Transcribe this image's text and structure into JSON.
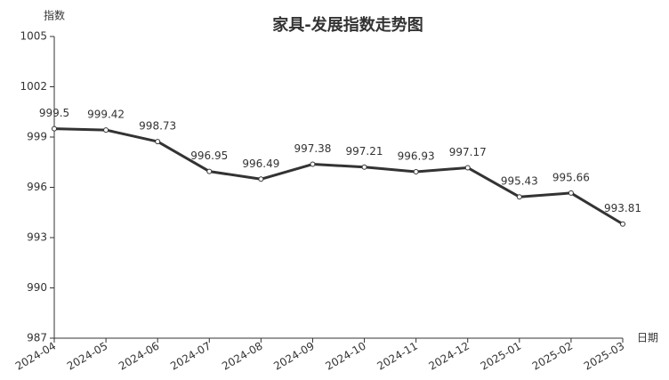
{
  "chart_data": {
    "type": "line",
    "title": "家具-发展指数走势图",
    "y_label": "指数",
    "x_label": "日期",
    "categories": [
      "2024-04",
      "2024-05",
      "2024-06",
      "2024-07",
      "2024-08",
      "2024-09",
      "2024-10",
      "2024-11",
      "2024-12",
      "2025-01",
      "2025-02",
      "2025-03"
    ],
    "values": [
      999.5,
      999.42,
      998.73,
      996.95,
      996.49,
      997.38,
      997.21,
      996.93,
      997.17,
      995.43,
      995.66,
      993.81
    ],
    "color": "#333333",
    "ylim": [
      987,
      1005
    ],
    "yticks": [
      987,
      990,
      993,
      996,
      999,
      1002,
      1005
    ],
    "grid": false
  }
}
